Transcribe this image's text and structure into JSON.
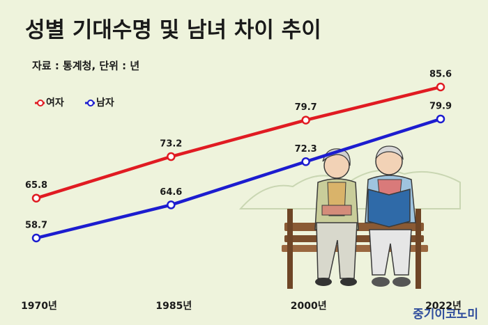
{
  "chart_data": {
    "type": "line",
    "title": "성별 기대수명 및 남녀 차이 추이",
    "subtitle": "자료 : 통계청, 단위 : 년",
    "categories": [
      "1970년",
      "1985년",
      "2000년",
      "2022년"
    ],
    "series": [
      {
        "name": "여자",
        "color": "#e01b22",
        "values": [
          65.8,
          73.2,
          79.7,
          85.6
        ]
      },
      {
        "name": "남자",
        "color": "#1c1ccf",
        "values": [
          58.7,
          64.6,
          72.3,
          79.9
        ]
      }
    ],
    "legend": "top-left",
    "watermark": "중기이코노미"
  }
}
